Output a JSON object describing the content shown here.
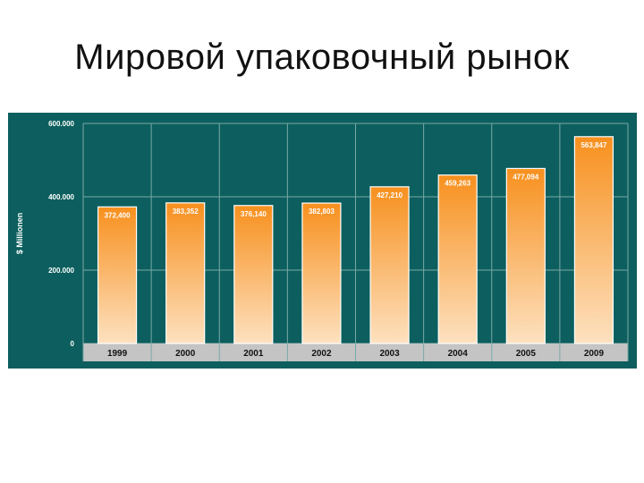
{
  "slide": {
    "title": "Мировой упаковочный рынок"
  },
  "colors": {
    "panel_bg": "#0c5f5e",
    "gridline": "#7aa9a8",
    "bar_top": "#f7901e",
    "bar_bottom": "#fde1c0",
    "category_band": "#c4c4c4",
    "axis_text": "#ffffff",
    "category_text": "#111111"
  },
  "chart_data": {
    "type": "bar",
    "ylabel": "$ Millionen",
    "ylim": [
      0,
      600000
    ],
    "yticks": [
      0,
      200000,
      400000,
      600000
    ],
    "ytick_labels": [
      "0",
      "200.000",
      "400.000",
      "600.000"
    ],
    "grid": true,
    "categories": [
      "1999",
      "2000",
      "2001",
      "2002",
      "2003",
      "2004",
      "2005",
      "2009"
    ],
    "series": [
      {
        "values": [
          372400,
          383352,
          376140,
          382803,
          427210,
          459263,
          477094,
          563847
        ],
        "data_labels": [
          "372,400",
          "383,352",
          "376,140",
          "382,803",
          "427,210",
          "459,263",
          "477,094",
          "563,847"
        ]
      }
    ]
  }
}
